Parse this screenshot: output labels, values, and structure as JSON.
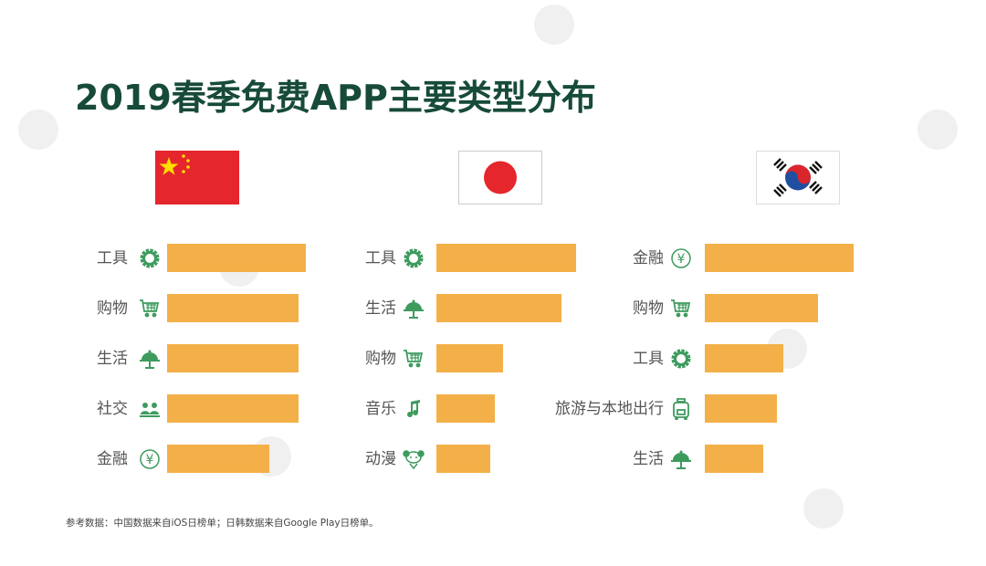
{
  "title": "2019春季免费APP主要类型分布",
  "footnote": "参考数据：中国数据来自iOS日榜单；日韩数据来自Google Play日榜单。",
  "colors": {
    "bar": "#f3b048",
    "icon": "#3e9b5e",
    "title": "#174a3a"
  },
  "chart_data": {
    "type": "bar",
    "orientation": "horizontal",
    "title": "2019春季免费APP主要类型分布",
    "value_scale": "relative (no axis shown), 0-100",
    "series": [
      {
        "name": "China",
        "flag": "china-flag",
        "categories": [
          "工具",
          "购物",
          "生活",
          "社交",
          "金融"
        ],
        "icons": [
          "gear-icon",
          "cart-icon",
          "life-icon",
          "social-icon",
          "yen-icon"
        ],
        "values": [
          92,
          87,
          87,
          87,
          68
        ]
      },
      {
        "name": "Japan",
        "flag": "japan-flag",
        "categories": [
          "工具",
          "生活",
          "购物",
          "音乐",
          "动漫"
        ],
        "icons": [
          "gear-icon",
          "life-icon",
          "cart-icon",
          "music-icon",
          "anime-icon"
        ],
        "values": [
          93,
          83,
          44,
          39,
          36
        ]
      },
      {
        "name": "Korea",
        "flag": "korea-flag",
        "categories": [
          "金融",
          "购物",
          "工具",
          "旅游与本地出行",
          "生活"
        ],
        "icons": [
          "yen-icon",
          "cart-icon",
          "gear-icon",
          "luggage-icon",
          "life-icon"
        ],
        "values": [
          99,
          75,
          52,
          48,
          39
        ]
      }
    ]
  }
}
